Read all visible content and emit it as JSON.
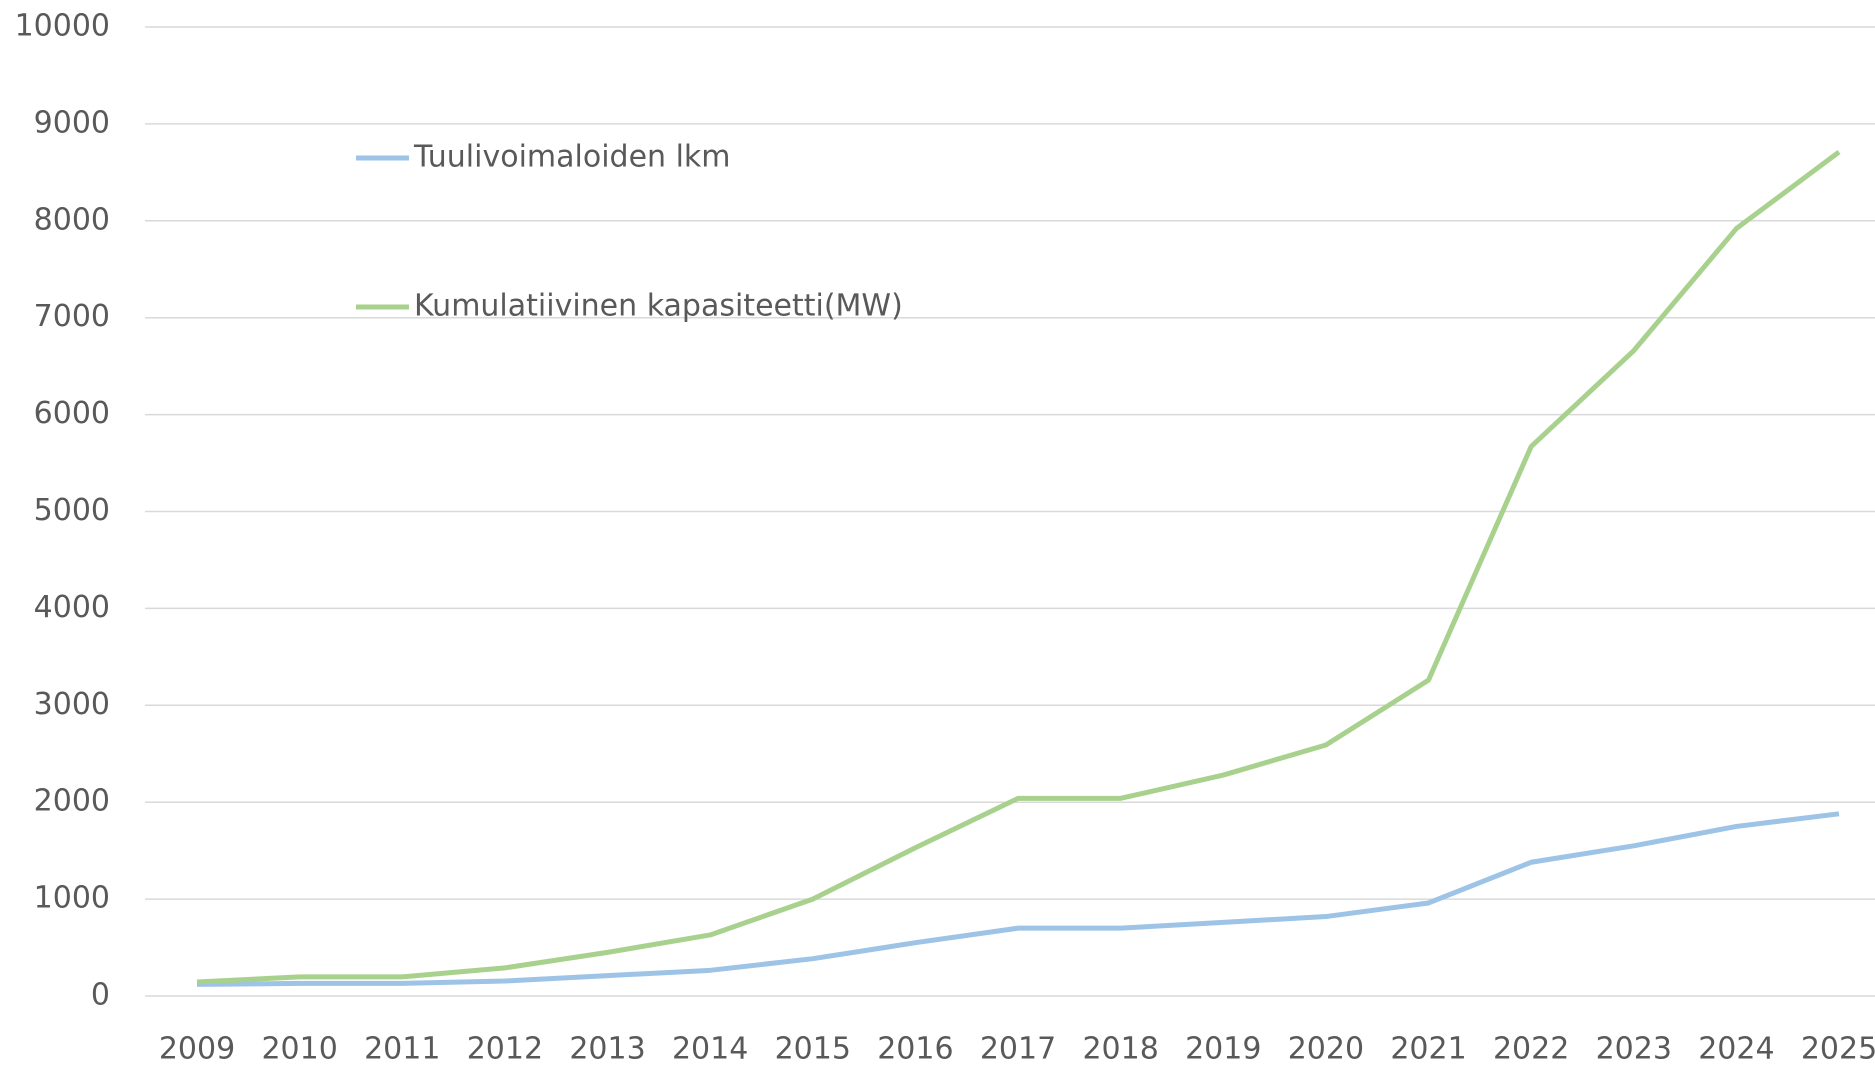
{
  "chart_data": {
    "type": "line",
    "categories": [
      "2009",
      "2010",
      "2011",
      "2012",
      "2013",
      "2014",
      "2015",
      "2016",
      "2017",
      "2018",
      "2019",
      "2020",
      "2021",
      "2022",
      "2023",
      "2024",
      "2025"
    ],
    "series": [
      {
        "name": "Tuulivoimaloiden lkm",
        "color": "#9dc3e6",
        "values": [
          120,
          130,
          130,
          155,
          210,
          265,
          385,
          550,
          700,
          700,
          760,
          820,
          960,
          1380,
          1550,
          1750,
          1880
        ]
      },
      {
        "name": "Kumulatiivinen kapasiteetti(MW)",
        "color": "#a9d18e",
        "values": [
          145,
          197,
          197,
          290,
          450,
          630,
          1000,
          1530,
          2040,
          2040,
          2280,
          2590,
          3260,
          5670,
          6660,
          7920,
          8710
        ]
      }
    ],
    "ylim": [
      0,
      10000
    ],
    "yticks": [
      0,
      1000,
      2000,
      3000,
      4000,
      5000,
      6000,
      7000,
      8000,
      9000,
      10000
    ],
    "grid": true,
    "legend": "upper left"
  }
}
